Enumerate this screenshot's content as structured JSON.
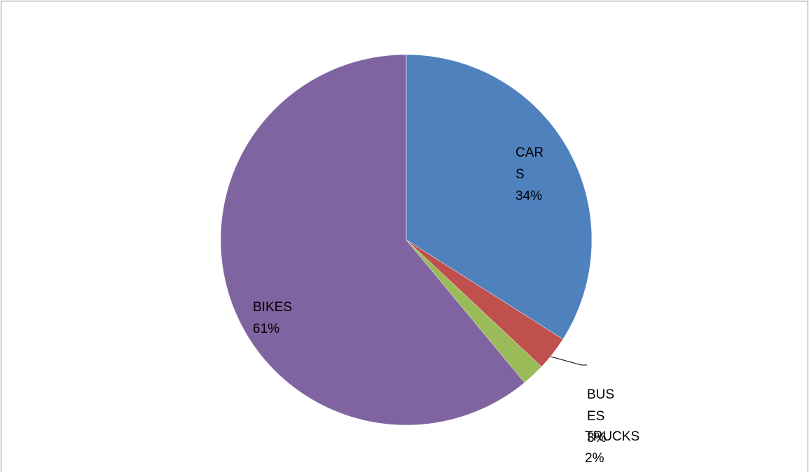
{
  "chart_data": {
    "type": "pie",
    "categories": [
      "CARS",
      "BUSES",
      "TRUCKS",
      "BIKES"
    ],
    "values": [
      34,
      3,
      2,
      61
    ],
    "value_labels": [
      "34%",
      "3%",
      "2%",
      "61%"
    ],
    "colors": [
      "#4f81bd",
      "#c0504d",
      "#9bbb59",
      "#8064a2"
    ]
  }
}
